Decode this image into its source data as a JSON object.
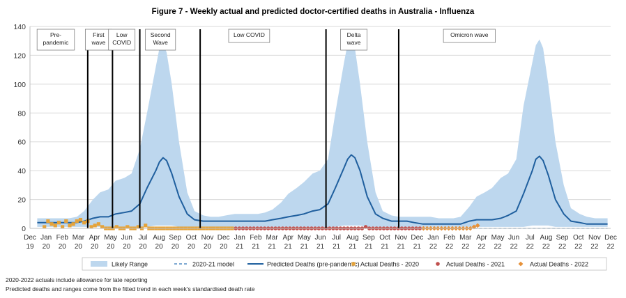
{
  "chart_data": {
    "type": "line",
    "title": "Figure 7 - Weekly actual and predicted doctor-certified deaths in Australia - Influenza",
    "xlabel": "",
    "ylabel": "",
    "ylim": [
      0,
      140
    ],
    "yticks": [
      0,
      20,
      40,
      60,
      80,
      100,
      120,
      140
    ],
    "x_range": [
      "2019-12-01",
      "2022-12-31"
    ],
    "grid": true,
    "legend_position": "bottom",
    "xtick_labels": [
      [
        "Dec",
        "19"
      ],
      [
        "Jan",
        "20"
      ],
      [
        "Feb",
        "20"
      ],
      [
        "Mar",
        "20"
      ],
      [
        "Apr",
        "20"
      ],
      [
        "May",
        "20"
      ],
      [
        "Jun",
        "20"
      ],
      [
        "Jul",
        "20"
      ],
      [
        "Aug",
        "20"
      ],
      [
        "Sep",
        "20"
      ],
      [
        "Oct",
        "20"
      ],
      [
        "Nov",
        "20"
      ],
      [
        "Dec",
        "20"
      ],
      [
        "Jan",
        "21"
      ],
      [
        "Feb",
        "21"
      ],
      [
        "Mar",
        "21"
      ],
      [
        "Apr",
        "21"
      ],
      [
        "May",
        "21"
      ],
      [
        "Jun",
        "21"
      ],
      [
        "Jul",
        "21"
      ],
      [
        "Aug",
        "21"
      ],
      [
        "Sep",
        "21"
      ],
      [
        "Oct",
        "21"
      ],
      [
        "Nov",
        "21"
      ],
      [
        "Dec",
        "21"
      ],
      [
        "Jan",
        "22"
      ],
      [
        "Feb",
        "22"
      ],
      [
        "Mar",
        "22"
      ],
      [
        "Apr",
        "22"
      ],
      [
        "May",
        "22"
      ],
      [
        "Jun",
        "22"
      ],
      [
        "Jul",
        "22"
      ],
      [
        "Aug",
        "22"
      ],
      [
        "Sep",
        "22"
      ],
      [
        "Oct",
        "22"
      ],
      [
        "Nov",
        "22"
      ],
      [
        "Dec",
        "22"
      ]
    ],
    "period_boundaries": [
      "2020-03-22",
      "2020-05-09",
      "2020-07-01",
      "2020-10-26",
      "2021-06-27",
      "2021-11-15"
    ],
    "periods": [
      {
        "label": [
          "Pre-",
          "pandemic"
        ],
        "center": "2020-01-20"
      },
      {
        "label": [
          "First",
          "wave"
        ],
        "center": "2020-04-12"
      },
      {
        "label": [
          "Low",
          "COVID"
        ],
        "center": "2020-05-27"
      },
      {
        "label": [
          "Second",
          "Wave"
        ],
        "center": "2020-08-10"
      },
      {
        "label": [
          "Low COVID"
        ],
        "center": "2021-01-29"
      },
      {
        "label": [
          "Delta",
          "wave"
        ],
        "center": "2021-08-20"
      },
      {
        "label": [
          "Omicron wave"
        ],
        "center": "2022-04-01"
      }
    ],
    "series": [
      {
        "name": "Likely Range",
        "kind": "band",
        "color": "#bdd7ee",
        "x": [
          "2019-12-15",
          "2020-01-01",
          "2020-01-15",
          "2020-02-01",
          "2020-02-15",
          "2020-03-01",
          "2020-03-15",
          "2020-04-01",
          "2020-04-15",
          "2020-05-01",
          "2020-05-15",
          "2020-06-01",
          "2020-06-15",
          "2020-07-01",
          "2020-07-15",
          "2020-08-01",
          "2020-08-08",
          "2020-08-15",
          "2020-08-22",
          "2020-09-01",
          "2020-09-15",
          "2020-10-01",
          "2020-10-15",
          "2020-11-01",
          "2020-11-15",
          "2020-12-01",
          "2020-12-15",
          "2021-01-01",
          "2021-01-15",
          "2021-02-01",
          "2021-02-15",
          "2021-03-01",
          "2021-03-15",
          "2021-04-01",
          "2021-04-15",
          "2021-05-01",
          "2021-05-15",
          "2021-06-01",
          "2021-06-15",
          "2021-07-01",
          "2021-07-15",
          "2021-08-01",
          "2021-08-08",
          "2021-08-15",
          "2021-08-22",
          "2021-09-01",
          "2021-09-15",
          "2021-10-01",
          "2021-10-15",
          "2021-11-01",
          "2021-11-15",
          "2021-12-01",
          "2021-12-15",
          "2022-01-01",
          "2022-01-15",
          "2022-02-01",
          "2022-02-15",
          "2022-03-01",
          "2022-03-15",
          "2022-04-01",
          "2022-04-15",
          "2022-05-01",
          "2022-05-15",
          "2022-06-01",
          "2022-06-15",
          "2022-07-01",
          "2022-07-15",
          "2022-08-01",
          "2022-08-08",
          "2022-08-15",
          "2022-08-22",
          "2022-09-01",
          "2022-09-15",
          "2022-10-01",
          "2022-10-15",
          "2022-11-01",
          "2022-11-15",
          "2022-12-01",
          "2022-12-25"
        ],
        "upper": [
          7,
          7,
          7,
          7,
          7,
          8,
          12,
          20,
          25,
          27,
          33,
          35,
          38,
          55,
          80,
          112,
          125,
          128,
          122,
          100,
          60,
          25,
          12,
          9,
          8,
          8,
          9,
          10,
          10,
          10,
          10,
          11,
          13,
          18,
          24,
          28,
          32,
          38,
          40,
          48,
          80,
          115,
          128,
          131,
          125,
          100,
          60,
          25,
          12,
          9,
          8,
          8,
          8,
          8,
          8,
          7,
          7,
          7,
          8,
          15,
          22,
          25,
          28,
          35,
          38,
          48,
          85,
          115,
          127,
          131,
          125,
          100,
          60,
          30,
          14,
          10,
          8,
          7,
          7
        ],
        "lower": [
          1,
          1,
          1,
          1,
          1,
          1,
          1,
          1,
          1,
          1,
          1,
          1,
          1,
          1,
          1,
          2,
          2,
          2,
          2,
          2,
          1,
          1,
          1,
          1,
          1,
          1,
          1,
          1,
          1,
          1,
          1,
          1,
          1,
          1,
          1,
          1,
          1,
          1,
          1,
          1,
          1,
          2,
          2,
          2,
          2,
          2,
          1,
          1,
          1,
          1,
          1,
          1,
          1,
          1,
          1,
          1,
          1,
          1,
          1,
          1,
          1,
          1,
          1,
          1,
          1,
          1,
          1,
          2,
          2,
          2,
          2,
          2,
          1,
          1,
          1,
          1,
          1,
          1,
          1
        ]
      },
      {
        "name": "2020-21 model",
        "kind": "line",
        "dash": true,
        "color": "#2e75b6",
        "x": [
          "2022-04-01",
          "2022-12-25"
        ],
        "values": [
          0,
          0
        ]
      },
      {
        "name": "Predicted Deaths (pre-pandemic)",
        "kind": "line",
        "color": "#1f5f9e",
        "x": [
          "2019-12-15",
          "2020-01-01",
          "2020-01-15",
          "2020-02-01",
          "2020-02-15",
          "2020-03-01",
          "2020-03-15",
          "2020-04-01",
          "2020-04-15",
          "2020-05-01",
          "2020-05-15",
          "2020-06-01",
          "2020-06-15",
          "2020-07-01",
          "2020-07-15",
          "2020-08-01",
          "2020-08-08",
          "2020-08-15",
          "2020-08-22",
          "2020-09-01",
          "2020-09-15",
          "2020-10-01",
          "2020-10-15",
          "2020-11-01",
          "2020-11-15",
          "2020-12-01",
          "2020-12-15",
          "2021-01-01",
          "2021-01-15",
          "2021-02-01",
          "2021-02-15",
          "2021-03-01",
          "2021-03-15",
          "2021-04-01",
          "2021-04-15",
          "2021-05-01",
          "2021-05-15",
          "2021-06-01",
          "2021-06-15",
          "2021-07-01",
          "2021-07-15",
          "2021-08-01",
          "2021-08-08",
          "2021-08-15",
          "2021-08-22",
          "2021-09-01",
          "2021-09-15",
          "2021-10-01",
          "2021-10-15",
          "2021-11-01",
          "2021-11-15",
          "2021-12-01",
          "2021-12-15",
          "2022-01-01",
          "2022-01-15",
          "2022-02-01",
          "2022-02-15",
          "2022-03-01",
          "2022-03-15",
          "2022-04-01",
          "2022-04-15",
          "2022-05-01",
          "2022-05-15",
          "2022-06-01",
          "2022-06-15",
          "2022-07-01",
          "2022-07-15",
          "2022-08-01",
          "2022-08-08",
          "2022-08-15",
          "2022-08-22",
          "2022-09-01",
          "2022-09-15",
          "2022-10-01",
          "2022-10-15",
          "2022-11-01",
          "2022-11-15",
          "2022-12-01",
          "2022-12-25"
        ],
        "values": [
          4,
          4,
          4,
          4,
          4,
          4,
          5,
          7,
          8,
          8,
          10,
          11,
          12,
          17,
          28,
          40,
          46,
          49,
          47,
          38,
          22,
          10,
          6,
          5,
          5,
          5,
          5,
          5,
          5,
          5,
          5,
          5,
          6,
          7,
          8,
          9,
          10,
          12,
          13,
          17,
          28,
          42,
          48,
          51,
          49,
          40,
          22,
          10,
          7,
          5,
          5,
          5,
          4,
          3,
          3,
          3,
          3,
          3,
          3,
          5,
          6,
          6,
          6,
          7,
          9,
          12,
          24,
          40,
          48,
          50,
          47,
          37,
          20,
          10,
          5,
          4,
          3,
          3,
          3
        ]
      },
      {
        "name": "Actual Deaths - 2020",
        "kind": "points",
        "marker": "square",
        "color": "#e5a33a",
        "x": [
          "2019-12-29",
          "2020-01-05",
          "2020-01-12",
          "2020-01-19",
          "2020-01-26",
          "2020-02-02",
          "2020-02-09",
          "2020-02-16",
          "2020-02-23",
          "2020-03-01",
          "2020-03-08",
          "2020-03-15",
          "2020-03-22",
          "2020-03-29",
          "2020-04-05",
          "2020-04-12",
          "2020-04-19",
          "2020-04-26",
          "2020-05-03",
          "2020-05-10",
          "2020-05-17",
          "2020-05-24",
          "2020-05-31",
          "2020-06-07",
          "2020-06-14",
          "2020-06-21",
          "2020-06-28",
          "2020-07-05",
          "2020-07-12",
          "2020-07-19",
          "2020-07-26",
          "2020-08-02",
          "2020-08-09",
          "2020-08-16",
          "2020-08-23",
          "2020-08-30",
          "2020-09-06",
          "2020-09-13",
          "2020-09-20",
          "2020-09-27",
          "2020-10-04",
          "2020-10-11",
          "2020-10-18",
          "2020-10-25",
          "2020-11-01",
          "2020-11-08",
          "2020-11-15",
          "2020-11-22",
          "2020-11-29",
          "2020-12-06",
          "2020-12-13",
          "2020-12-20",
          "2020-12-27"
        ],
        "values": [
          1,
          5,
          3,
          2,
          4,
          1,
          5,
          2,
          3,
          5,
          6,
          4,
          5,
          1,
          2,
          3,
          1,
          0,
          0,
          0,
          1,
          0,
          0,
          1,
          0,
          0,
          1,
          0,
          2,
          0,
          0,
          0,
          0,
          0,
          0,
          0,
          0,
          0,
          0,
          0,
          0,
          0,
          0,
          0,
          0,
          0,
          0,
          0,
          0,
          0,
          0,
          0,
          0
        ]
      },
      {
        "name": "Actual Deaths - 2021",
        "kind": "points",
        "marker": "circle",
        "color": "#c0504d",
        "x": [
          "2021-01-03",
          "2021-01-10",
          "2021-01-17",
          "2021-01-24",
          "2021-01-31",
          "2021-02-07",
          "2021-02-14",
          "2021-02-21",
          "2021-02-28",
          "2021-03-07",
          "2021-03-14",
          "2021-03-21",
          "2021-03-28",
          "2021-04-04",
          "2021-04-11",
          "2021-04-18",
          "2021-04-25",
          "2021-05-02",
          "2021-05-09",
          "2021-05-16",
          "2021-05-23",
          "2021-05-30",
          "2021-06-06",
          "2021-06-13",
          "2021-06-20",
          "2021-06-27",
          "2021-07-04",
          "2021-07-11",
          "2021-07-18",
          "2021-07-25",
          "2021-08-01",
          "2021-08-08",
          "2021-08-15",
          "2021-08-22",
          "2021-08-29",
          "2021-09-05",
          "2021-09-12",
          "2021-09-19",
          "2021-09-26",
          "2021-10-03",
          "2021-10-10",
          "2021-10-17",
          "2021-10-24",
          "2021-10-31",
          "2021-11-07",
          "2021-11-14",
          "2021-11-21",
          "2021-11-28",
          "2021-12-05",
          "2021-12-12",
          "2021-12-19",
          "2021-12-26"
        ],
        "values": [
          0,
          0,
          0,
          0,
          0,
          0,
          0,
          0,
          0,
          0,
          0,
          0,
          0,
          0,
          0,
          0,
          0,
          0,
          0,
          0,
          0,
          0,
          0,
          0,
          0,
          0,
          0,
          0,
          0,
          0,
          0,
          0,
          0,
          0,
          0,
          0,
          1,
          0,
          0,
          0,
          0,
          0,
          0,
          0,
          0,
          0,
          0,
          0,
          0,
          0,
          0,
          0
        ]
      },
      {
        "name": "Actual Deaths - 2022",
        "kind": "points",
        "marker": "diamond",
        "color": "#e69138",
        "x": [
          "2022-01-02",
          "2022-01-09",
          "2022-01-16",
          "2022-01-23",
          "2022-01-30",
          "2022-02-06",
          "2022-02-13",
          "2022-02-20",
          "2022-02-27",
          "2022-03-06",
          "2022-03-13",
          "2022-03-20",
          "2022-03-27",
          "2022-04-03",
          "2022-04-10",
          "2022-04-17"
        ],
        "values": [
          0,
          0,
          0,
          0,
          0,
          0,
          0,
          0,
          0,
          0,
          0,
          0,
          0,
          0,
          1,
          2
        ]
      }
    ],
    "footnotes": [
      "2020-2022  actuals include allowance for late reporting",
      "Predicted deaths and ranges come from the fitted trend in each week's standardised death rate"
    ]
  }
}
